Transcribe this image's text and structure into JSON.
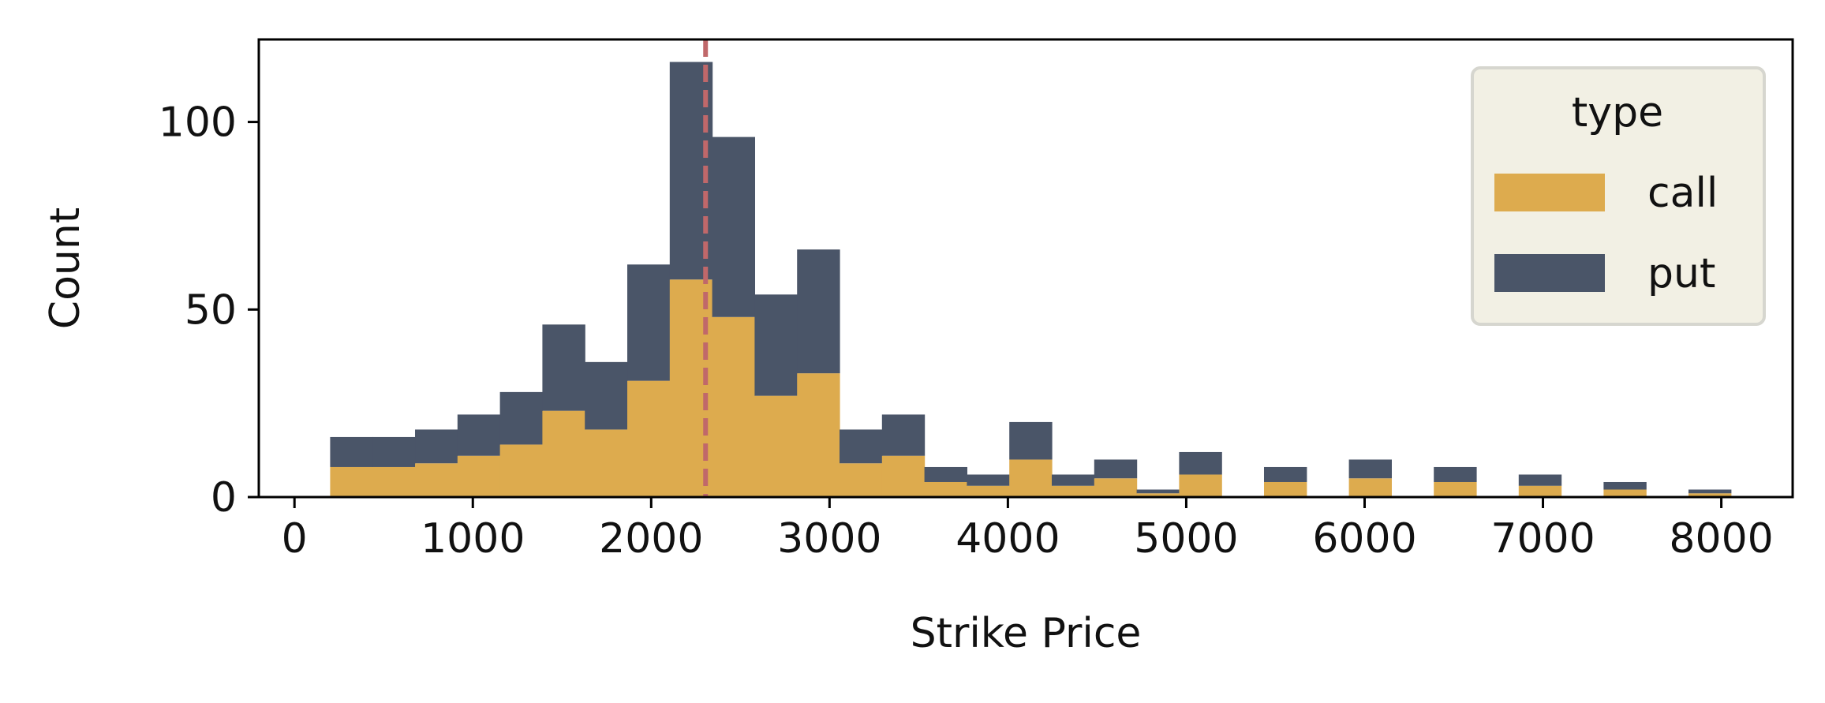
{
  "chart_data": {
    "type": "bar",
    "stacked": true,
    "title": "",
    "xlabel": "Strike Price",
    "ylabel": "Count",
    "xlim": [
      -200,
      8400
    ],
    "ylim": [
      0,
      122
    ],
    "xticks": [
      "0",
      "1000",
      "2000",
      "3000",
      "4000",
      "5000",
      "6000",
      "7000",
      "8000"
    ],
    "yticks": [
      "0",
      "50",
      "100"
    ],
    "grid": false,
    "bin_width": 238,
    "bins": [
      {
        "x0": 200,
        "x1": 438
      },
      {
        "x0": 438,
        "x1": 676
      },
      {
        "x0": 676,
        "x1": 914
      },
      {
        "x0": 914,
        "x1": 1152
      },
      {
        "x0": 1152,
        "x1": 1390
      },
      {
        "x0": 1390,
        "x1": 1628
      },
      {
        "x0": 1628,
        "x1": 1866
      },
      {
        "x0": 1866,
        "x1": 2104
      },
      {
        "x0": 2104,
        "x1": 2342
      },
      {
        "x0": 2342,
        "x1": 2580
      },
      {
        "x0": 2580,
        "x1": 2818
      },
      {
        "x0": 2818,
        "x1": 3056
      },
      {
        "x0": 3056,
        "x1": 3294
      },
      {
        "x0": 3294,
        "x1": 3532
      },
      {
        "x0": 3532,
        "x1": 3770
      },
      {
        "x0": 3770,
        "x1": 4008
      },
      {
        "x0": 4008,
        "x1": 4246
      },
      {
        "x0": 4246,
        "x1": 4484
      },
      {
        "x0": 4484,
        "x1": 4722
      },
      {
        "x0": 4722,
        "x1": 4960
      },
      {
        "x0": 4960,
        "x1": 5198
      },
      {
        "x0": 5198,
        "x1": 5436
      },
      {
        "x0": 5436,
        "x1": 5674
      },
      {
        "x0": 5674,
        "x1": 5912
      },
      {
        "x0": 5912,
        "x1": 6150
      },
      {
        "x0": 6150,
        "x1": 6388
      },
      {
        "x0": 6388,
        "x1": 6626
      },
      {
        "x0": 6626,
        "x1": 6864
      },
      {
        "x0": 6864,
        "x1": 7102
      },
      {
        "x0": 7102,
        "x1": 7340
      },
      {
        "x0": 7340,
        "x1": 7578
      },
      {
        "x0": 7578,
        "x1": 7816
      },
      {
        "x0": 7816,
        "x1": 8054
      }
    ],
    "series": [
      {
        "name": "call",
        "color": "#ddab4e",
        "values": [
          8,
          8,
          9,
          11,
          14,
          23,
          18,
          31,
          58,
          48,
          27,
          33,
          9,
          11,
          4,
          3,
          10,
          3,
          5,
          1,
          6,
          0,
          4,
          0,
          5,
          0,
          4,
          0,
          3,
          0,
          2,
          0,
          1
        ]
      },
      {
        "name": "put",
        "color": "#4a5568",
        "values": [
          8,
          8,
          9,
          11,
          14,
          23,
          18,
          31,
          58,
          48,
          27,
          33,
          9,
          11,
          4,
          3,
          10,
          3,
          5,
          1,
          6,
          0,
          4,
          0,
          5,
          0,
          4,
          0,
          3,
          0,
          2,
          0,
          1
        ]
      }
    ],
    "reference_line": {
      "x": 2305,
      "color": "#c0686a",
      "style": "dashed"
    },
    "legend": {
      "title": "type",
      "placement": "top-right",
      "entries": [
        "call",
        "put"
      ],
      "background": "#f2f0e4",
      "border": "#d6d6cf"
    }
  }
}
